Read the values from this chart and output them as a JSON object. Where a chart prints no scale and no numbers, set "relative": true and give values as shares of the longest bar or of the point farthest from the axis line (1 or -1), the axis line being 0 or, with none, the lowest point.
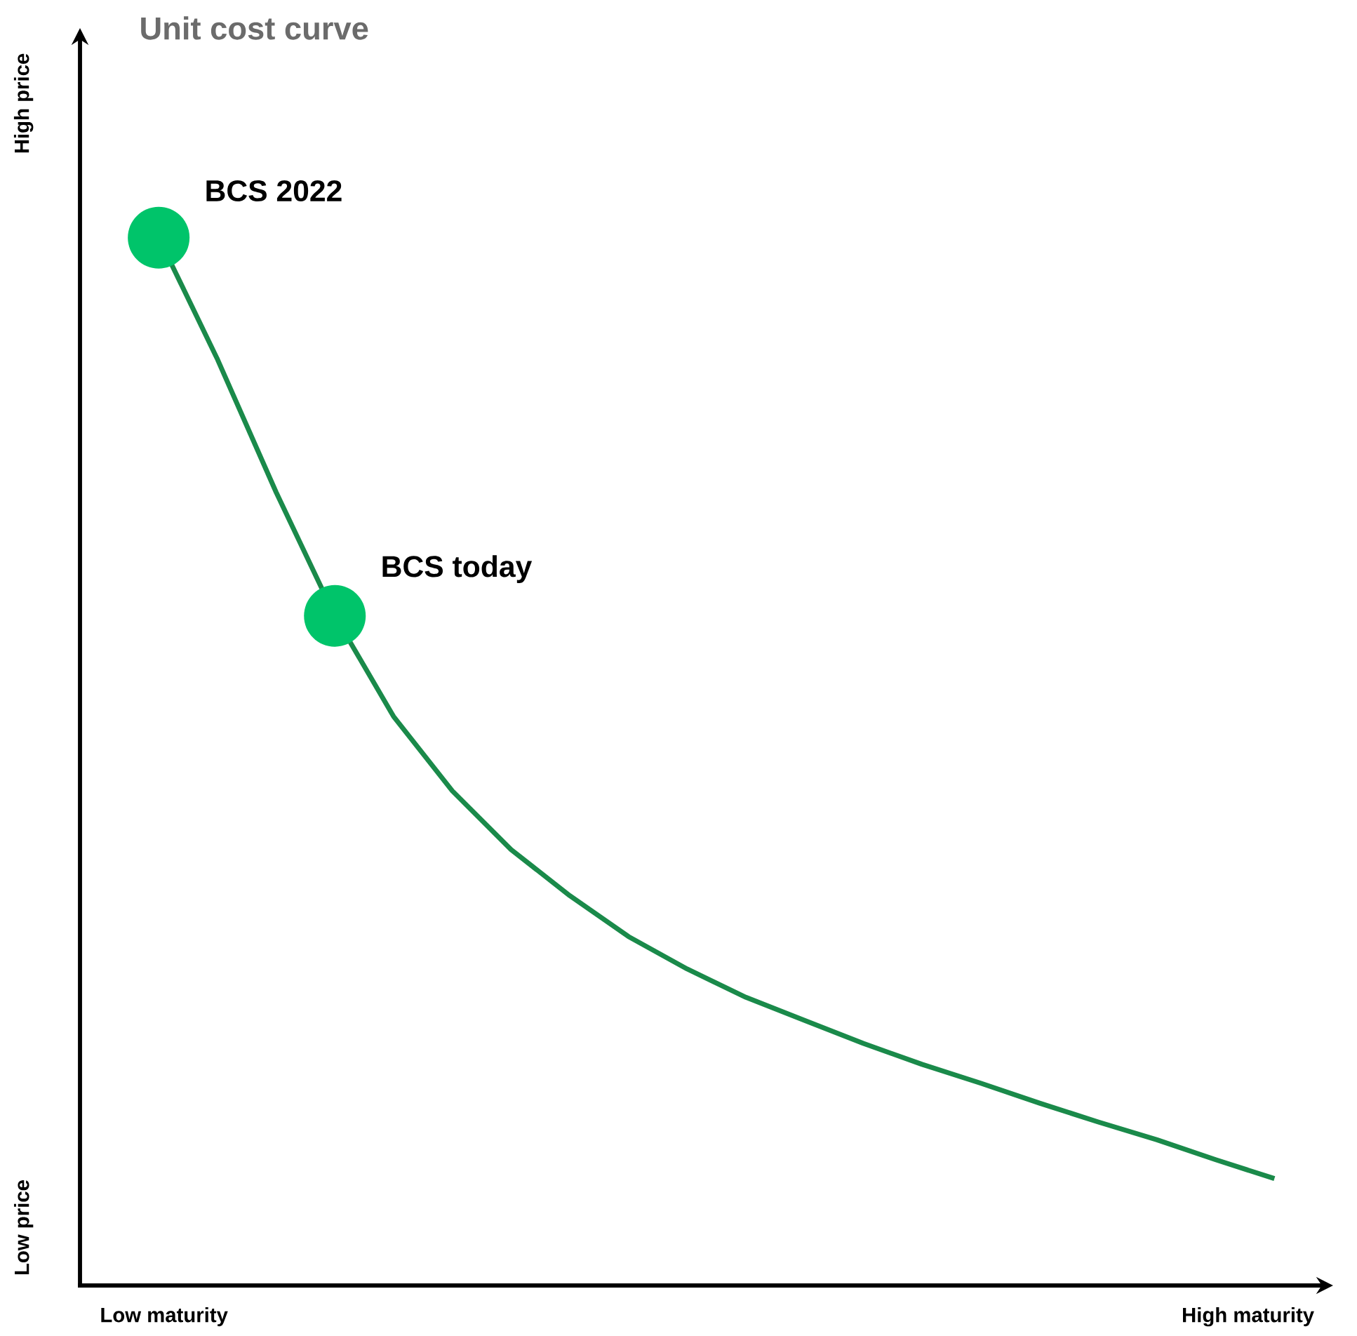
{
  "chart_data": {
    "type": "line",
    "relative": true,
    "title": "Unit cost curve",
    "categories": [
      null,
      null,
      null,
      null,
      null,
      null,
      null,
      null,
      null,
      null,
      null,
      null,
      null,
      null,
      null,
      null,
      null,
      null,
      null,
      null
    ],
    "annotations": [
      "High price",
      "Low price",
      "Low maturity",
      "High maturity",
      "BCS 2022",
      "BCS today"
    ],
    "series": [
      {
        "color": "#1a8a4a",
        "marker": "none",
        "values": [
          1,
          0.884,
          0.757,
          0.639,
          0.543,
          0.472,
          0.416,
          0.372,
          0.333,
          0.302,
          0.275,
          0.253,
          0.231,
          0.211,
          0.193,
          0.174,
          0.156,
          0.139,
          0.12,
          0.102
        ]
      }
    ]
  }
}
